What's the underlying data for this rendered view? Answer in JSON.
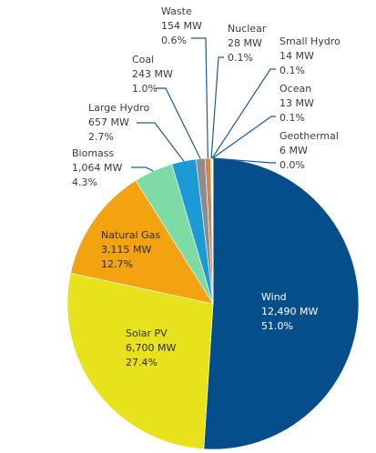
{
  "chart_data": {
    "type": "pie",
    "title": "",
    "unit": "MW",
    "slices": [
      {
        "name": "Wind",
        "value": 12490,
        "value_label": "12,490 MW",
        "percent_label": "51.0%",
        "color": "#054e8c"
      },
      {
        "name": "Solar PV",
        "value": 6700,
        "value_label": "6,700 MW",
        "percent_label": "27.4%",
        "color": "#e8e21c"
      },
      {
        "name": "Natural Gas",
        "value": 3115,
        "value_label": "3,115 MW",
        "percent_label": "12.7%",
        "color": "#f2a30f"
      },
      {
        "name": "Biomass",
        "value": 1064,
        "value_label": "1,064 MW",
        "percent_label": "4.3%",
        "color": "#7fdba6"
      },
      {
        "name": "Large Hydro",
        "value": 657,
        "value_label": "657 MW",
        "percent_label": "2.7%",
        "color": "#1c9ad6"
      },
      {
        "name": "Coal",
        "value": 243,
        "value_label": "243 MW",
        "percent_label": "1.0%",
        "color": "#8c8c8c"
      },
      {
        "name": "Waste",
        "value": 154,
        "value_label": "154 MW",
        "percent_label": "0.6%",
        "color": "#c98a52"
      },
      {
        "name": "Nuclear",
        "value": 28,
        "value_label": "28 MW",
        "percent_label": "0.1%",
        "color": "#f5b732"
      },
      {
        "name": "Small Hydro",
        "value": 14,
        "value_label": "14 MW",
        "percent_label": "0.1%",
        "color": "#64c4d4"
      },
      {
        "name": "Ocean",
        "value": 13,
        "value_label": "13 MW",
        "percent_label": "0.1%",
        "color": "#2b74b8"
      },
      {
        "name": "Geothermal",
        "value": 6,
        "value_label": "6 MW",
        "percent_label": "0.0%",
        "color": "#e36b2a"
      }
    ]
  }
}
